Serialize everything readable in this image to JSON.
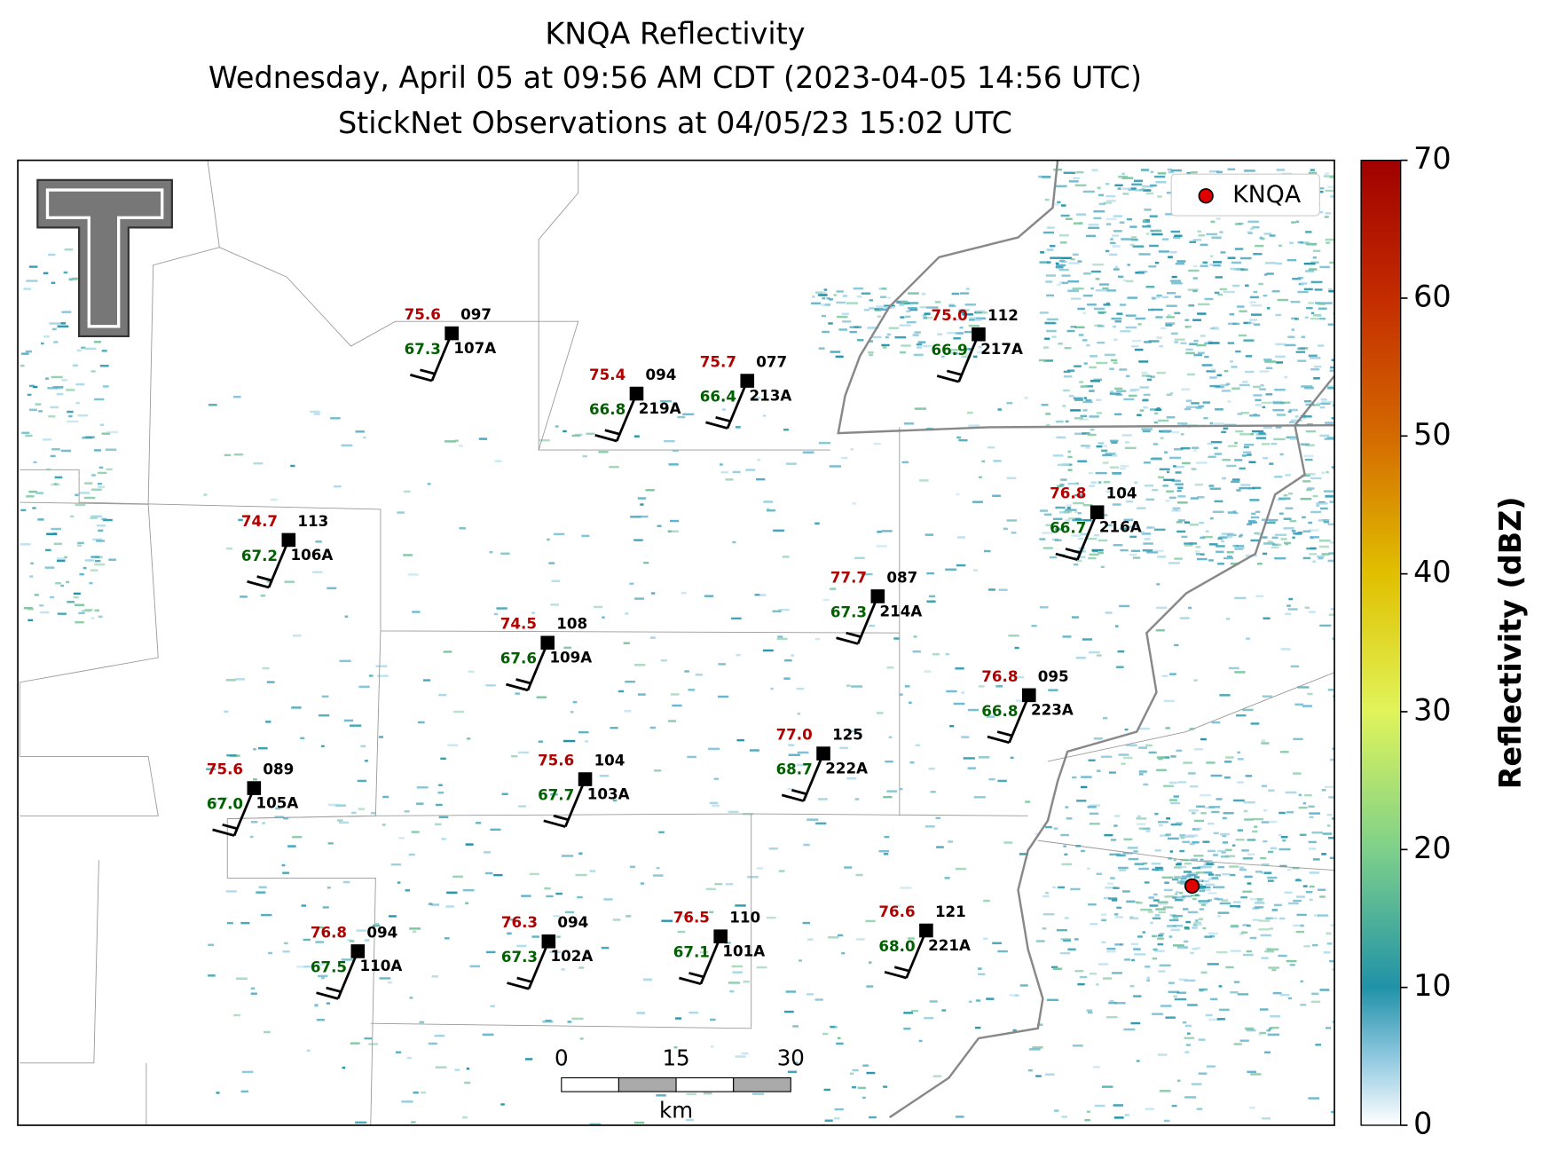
{
  "title": [
    "KNQA Reflectivity",
    "Wednesday, April 05 at 09:56 AM CDT (2023-04-05 14:56 UTC)",
    "StickNet Observations at 04/05/23 15:02 UTC"
  ],
  "legend": {
    "label": "KNQA"
  },
  "colorbar": {
    "label": "Reflectivity (dBZ)",
    "ylim": [
      0,
      70
    ],
    "yticks": [
      0,
      10,
      20,
      30,
      40,
      50,
      60,
      70
    ]
  },
  "scale_bar": {
    "ticks": [
      0,
      15,
      30
    ],
    "unit": "km"
  },
  "stations": [
    {
      "id": "107A",
      "temp": "75.6",
      "dewpoint": "67.3",
      "pressure": "097"
    },
    {
      "id": "219A",
      "temp": "75.4",
      "dewpoint": "66.8",
      "pressure": "094"
    },
    {
      "id": "213A",
      "temp": "75.7",
      "dewpoint": "66.4",
      "pressure": "077"
    },
    {
      "id": "217A",
      "temp": "75.0",
      "dewpoint": "66.9",
      "pressure": "112"
    },
    {
      "id": "106A",
      "temp": "74.7",
      "dewpoint": "67.2",
      "pressure": "113"
    },
    {
      "id": "216A",
      "temp": "76.8",
      "dewpoint": "66.7",
      "pressure": "104"
    },
    {
      "id": "214A",
      "temp": "77.7",
      "dewpoint": "67.3",
      "pressure": "087"
    },
    {
      "id": "109A",
      "temp": "74.5",
      "dewpoint": "67.6",
      "pressure": "108"
    },
    {
      "id": "223A",
      "temp": "76.8",
      "dewpoint": "66.8",
      "pressure": "095"
    },
    {
      "id": "105A",
      "temp": "75.6",
      "dewpoint": "67.0",
      "pressure": "089"
    },
    {
      "id": "103A",
      "temp": "75.6",
      "dewpoint": "67.7",
      "pressure": "104"
    },
    {
      "id": "222A",
      "temp": "77.0",
      "dewpoint": "68.7",
      "pressure": "125"
    },
    {
      "id": "110A",
      "temp": "76.8",
      "dewpoint": "67.5",
      "pressure": "094"
    },
    {
      "id": "102A",
      "temp": "76.3",
      "dewpoint": "67.3",
      "pressure": "094"
    },
    {
      "id": "101A",
      "temp": "76.5",
      "dewpoint": "67.1",
      "pressure": "110"
    },
    {
      "id": "221A",
      "temp": "76.6",
      "dewpoint": "68.0",
      "pressure": "121"
    }
  ]
}
